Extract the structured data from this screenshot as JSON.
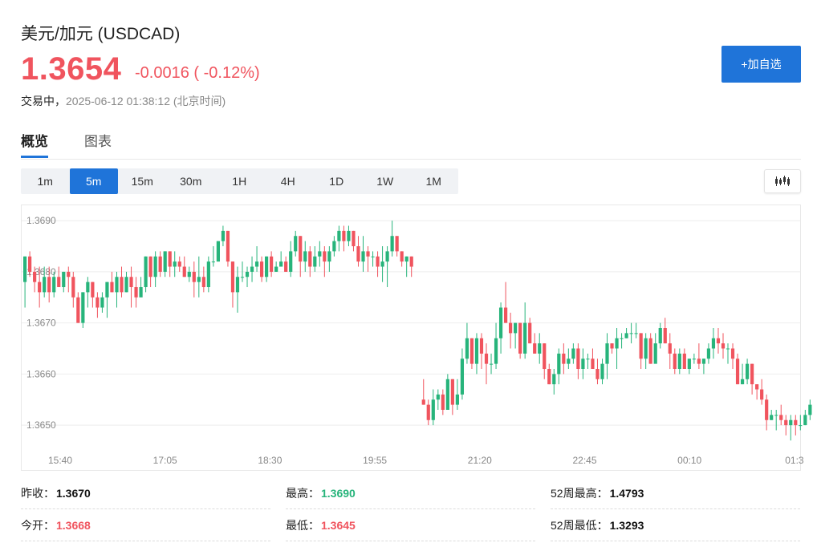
{
  "header": {
    "title": "美元/加元  (USDCAD)",
    "price": "1.3654",
    "change": "-0.0016 ( -0.12%)",
    "status_label": "交易中，",
    "timestamp": "2025-06-12 01:38:12  (北京时间)",
    "add_button": "+加自选"
  },
  "tabs": [
    {
      "label": "概览",
      "active": true
    },
    {
      "label": "图表",
      "active": false
    }
  ],
  "periods": [
    {
      "label": "1m",
      "active": false
    },
    {
      "label": "5m",
      "active": true
    },
    {
      "label": "15m",
      "active": false
    },
    {
      "label": "30m",
      "active": false
    },
    {
      "label": "1H",
      "active": false
    },
    {
      "label": "4H",
      "active": false
    },
    {
      "label": "1D",
      "active": false
    },
    {
      "label": "1W",
      "active": false
    },
    {
      "label": "1M",
      "active": false
    }
  ],
  "chart_type_icon": "candlestick-icon",
  "colors": {
    "up": "#27b47b",
    "down": "#f0545e",
    "accent": "#1f74d9"
  },
  "chart_data": {
    "type": "candlestick",
    "title": "",
    "y_ticks": [
      "1.3690",
      "1.3680",
      "1.3670",
      "1.3660",
      "1.3650"
    ],
    "x_ticks": [
      "15:40",
      "17:05",
      "18:30",
      "19:55",
      "21:20",
      "22:45",
      "00:10",
      "01:3"
    ],
    "ylim": [
      1.3645,
      1.3693
    ],
    "grid": true,
    "session_gap_after_index": 80,
    "candles": [
      [
        1.3678,
        1.3683,
        1.3683,
        1.3673
      ],
      [
        1.3683,
        1.368,
        1.3684,
        1.3679
      ],
      [
        1.368,
        1.3678,
        1.3681,
        1.3676
      ],
      [
        1.3678,
        1.3676,
        1.3681,
        1.3673
      ],
      [
        1.3676,
        1.3679,
        1.3681,
        1.3675
      ],
      [
        1.3679,
        1.3676,
        1.3681,
        1.3674
      ],
      [
        1.3676,
        1.3679,
        1.368,
        1.3675
      ],
      [
        1.3679,
        1.3677,
        1.3681,
        1.3677
      ],
      [
        1.3677,
        1.368,
        1.368,
        1.3676
      ],
      [
        1.368,
        1.3679,
        1.3681,
        1.3676
      ],
      [
        1.3679,
        1.3675,
        1.368,
        1.3673
      ],
      [
        1.3675,
        1.367,
        1.3676,
        1.367
      ],
      [
        1.367,
        1.3676,
        1.3676,
        1.3669
      ],
      [
        1.3676,
        1.3678,
        1.3679,
        1.3673
      ],
      [
        1.3678,
        1.3675,
        1.3678,
        1.3673
      ],
      [
        1.3675,
        1.3673,
        1.3676,
        1.3671
      ],
      [
        1.3673,
        1.3675,
        1.3676,
        1.3672
      ],
      [
        1.3675,
        1.3678,
        1.3678,
        1.3671
      ],
      [
        1.3678,
        1.3676,
        1.368,
        1.3676
      ],
      [
        1.3676,
        1.3679,
        1.368,
        1.3673
      ],
      [
        1.3679,
        1.3676,
        1.3681,
        1.3675
      ],
      [
        1.3676,
        1.3679,
        1.368,
        1.3676
      ],
      [
        1.3679,
        1.3677,
        1.3681,
        1.3673
      ],
      [
        1.3677,
        1.3675,
        1.3679,
        1.3673
      ],
      [
        1.3675,
        1.3677,
        1.3679,
        1.3676
      ],
      [
        1.3677,
        1.3683,
        1.3683,
        1.3676
      ],
      [
        1.3683,
        1.3679,
        1.3683,
        1.3677
      ],
      [
        1.3679,
        1.3683,
        1.3684,
        1.3677
      ],
      [
        1.3683,
        1.368,
        1.3684,
        1.3679
      ],
      [
        1.368,
        1.3684,
        1.3684,
        1.3679
      ],
      [
        1.3684,
        1.3681,
        1.3684,
        1.3679
      ],
      [
        1.3681,
        1.3682,
        1.3684,
        1.3679
      ],
      [
        1.3682,
        1.3681,
        1.3683,
        1.368
      ],
      [
        1.3681,
        1.3679,
        1.3683,
        1.3679
      ],
      [
        1.3679,
        1.368,
        1.3681,
        1.3678
      ],
      [
        1.368,
        1.3678,
        1.3682,
        1.3675
      ],
      [
        1.3678,
        1.3679,
        1.3683,
        1.3675
      ],
      [
        1.3679,
        1.3677,
        1.3681,
        1.3676
      ],
      [
        1.3677,
        1.3682,
        1.3683,
        1.3676
      ],
      [
        1.3682,
        1.3682,
        1.3685,
        1.3681
      ],
      [
        1.3682,
        1.3686,
        1.3686,
        1.3682
      ],
      [
        1.3686,
        1.3688,
        1.3689,
        1.3685
      ],
      [
        1.3688,
        1.3682,
        1.3688,
        1.3681
      ],
      [
        1.3682,
        1.3676,
        1.3682,
        1.3673
      ],
      [
        1.3676,
        1.3679,
        1.3681,
        1.3672
      ],
      [
        1.3679,
        1.3679,
        1.3682,
        1.3678
      ],
      [
        1.3679,
        1.368,
        1.3681,
        1.3677
      ],
      [
        1.368,
        1.3681,
        1.3683,
        1.3678
      ],
      [
        1.3681,
        1.3682,
        1.3685,
        1.368
      ],
      [
        1.3682,
        1.3679,
        1.3683,
        1.3678
      ],
      [
        1.3679,
        1.3683,
        1.3683,
        1.3678
      ],
      [
        1.3683,
        1.368,
        1.3684,
        1.3679
      ],
      [
        1.368,
        1.3681,
        1.3682,
        1.368
      ],
      [
        1.3681,
        1.3682,
        1.3684,
        1.3681
      ],
      [
        1.3682,
        1.368,
        1.3683,
        1.368
      ],
      [
        1.368,
        1.3684,
        1.3686,
        1.3679
      ],
      [
        1.3684,
        1.3687,
        1.3688,
        1.3683
      ],
      [
        1.3687,
        1.3682,
        1.3687,
        1.3679
      ],
      [
        1.3682,
        1.3684,
        1.3686,
        1.368
      ],
      [
        1.3684,
        1.3681,
        1.3685,
        1.3679
      ],
      [
        1.3681,
        1.3683,
        1.3685,
        1.368
      ],
      [
        1.3683,
        1.3684,
        1.3686,
        1.3681
      ],
      [
        1.3684,
        1.3682,
        1.3685,
        1.3679
      ],
      [
        1.3682,
        1.3684,
        1.3685,
        1.368
      ],
      [
        1.3684,
        1.3686,
        1.3687,
        1.3683
      ],
      [
        1.3686,
        1.3688,
        1.3689,
        1.3684
      ],
      [
        1.3688,
        1.3686,
        1.3689,
        1.3684
      ],
      [
        1.3686,
        1.3688,
        1.3689,
        1.3685
      ],
      [
        1.3688,
        1.3685,
        1.3688,
        1.3684
      ],
      [
        1.3685,
        1.3682,
        1.3687,
        1.3681
      ],
      [
        1.3682,
        1.3684,
        1.3687,
        1.368
      ],
      [
        1.3684,
        1.3683,
        1.3685,
        1.368
      ],
      [
        1.3683,
        1.3683,
        1.3684,
        1.3681
      ],
      [
        1.3683,
        1.3681,
        1.3684,
        1.3679
      ],
      [
        1.3681,
        1.3682,
        1.3685,
        1.3678
      ],
      [
        1.3682,
        1.3684,
        1.3685,
        1.3677
      ],
      [
        1.3684,
        1.3687,
        1.369,
        1.3683
      ],
      [
        1.3687,
        1.3684,
        1.3687,
        1.3683
      ],
      [
        1.3684,
        1.3682,
        1.3684,
        1.3681
      ],
      [
        1.3682,
        1.3683,
        1.3683,
        1.3679
      ],
      [
        1.3683,
        1.3681,
        1.3683,
        1.3679
      ],
      [
        1.3655,
        1.3654,
        1.3659,
        1.3654
      ],
      [
        1.3654,
        1.3651,
        1.3655,
        1.365
      ],
      [
        1.3651,
        1.3655,
        1.3657,
        1.365
      ],
      [
        1.3655,
        1.3656,
        1.3657,
        1.3653
      ],
      [
        1.3656,
        1.3653,
        1.3657,
        1.3652
      ],
      [
        1.3653,
        1.3659,
        1.366,
        1.3653
      ],
      [
        1.3659,
        1.3654,
        1.3659,
        1.3652
      ],
      [
        1.3654,
        1.3656,
        1.3659,
        1.3653
      ],
      [
        1.3656,
        1.3663,
        1.3665,
        1.3655
      ],
      [
        1.3663,
        1.3667,
        1.367,
        1.3662
      ],
      [
        1.3667,
        1.3662,
        1.3667,
        1.3661
      ],
      [
        1.3662,
        1.3667,
        1.3668,
        1.366
      ],
      [
        1.3667,
        1.3664,
        1.3668,
        1.3661
      ],
      [
        1.3664,
        1.3662,
        1.3666,
        1.3658
      ],
      [
        1.3662,
        1.3662,
        1.3664,
        1.366
      ],
      [
        1.3662,
        1.3667,
        1.367,
        1.3661
      ],
      [
        1.3667,
        1.3673,
        1.3674,
        1.3664
      ],
      [
        1.3673,
        1.367,
        1.3678,
        1.367
      ],
      [
        1.367,
        1.3668,
        1.3672,
        1.3665
      ],
      [
        1.3668,
        1.367,
        1.367,
        1.3665
      ],
      [
        1.367,
        1.3664,
        1.367,
        1.3663
      ],
      [
        1.3664,
        1.367,
        1.3674,
        1.3663
      ],
      [
        1.367,
        1.3666,
        1.3671,
        1.3666
      ],
      [
        1.3666,
        1.3664,
        1.3668,
        1.3664
      ],
      [
        1.3664,
        1.3666,
        1.3668,
        1.3662
      ],
      [
        1.3666,
        1.3661,
        1.3666,
        1.3659
      ],
      [
        1.3661,
        1.3658,
        1.3662,
        1.3658
      ],
      [
        1.3658,
        1.366,
        1.3661,
        1.3656
      ],
      [
        1.366,
        1.3664,
        1.3665,
        1.3658
      ],
      [
        1.3664,
        1.3662,
        1.3666,
        1.366
      ],
      [
        1.3662,
        1.3663,
        1.3665,
        1.3661
      ],
      [
        1.3663,
        1.3665,
        1.3666,
        1.3662
      ],
      [
        1.3665,
        1.3661,
        1.3666,
        1.3659
      ],
      [
        1.3661,
        1.3663,
        1.3665,
        1.3659
      ],
      [
        1.3663,
        1.3663,
        1.3664,
        1.3661
      ],
      [
        1.3663,
        1.3661,
        1.3665,
        1.3661
      ],
      [
        1.3661,
        1.3659,
        1.3663,
        1.3658
      ],
      [
        1.3659,
        1.3662,
        1.3663,
        1.3658
      ],
      [
        1.3662,
        1.3666,
        1.3668,
        1.3659
      ],
      [
        1.3666,
        1.3665,
        1.3666,
        1.3664
      ],
      [
        1.3665,
        1.3667,
        1.3669,
        1.3661
      ],
      [
        1.3667,
        1.3667,
        1.3668,
        1.3665
      ],
      [
        1.3667,
        1.3668,
        1.3669,
        1.3667
      ],
      [
        1.3668,
        1.3668,
        1.367,
        1.3666
      ],
      [
        1.3668,
        1.3668,
        1.367,
        1.3667
      ],
      [
        1.3668,
        1.3663,
        1.3668,
        1.3661
      ],
      [
        1.3663,
        1.3667,
        1.3668,
        1.3661
      ],
      [
        1.3667,
        1.3662,
        1.3668,
        1.3662
      ],
      [
        1.3662,
        1.3666,
        1.3668,
        1.3663
      ],
      [
        1.3666,
        1.3669,
        1.367,
        1.3665
      ],
      [
        1.3669,
        1.3666,
        1.3671,
        1.3666
      ],
      [
        1.3666,
        1.3664,
        1.3668,
        1.3661
      ],
      [
        1.3664,
        1.3661,
        1.3665,
        1.366
      ],
      [
        1.3661,
        1.3664,
        1.3665,
        1.366
      ],
      [
        1.3664,
        1.3661,
        1.3665,
        1.3661
      ],
      [
        1.3661,
        1.3663,
        1.3663,
        1.366
      ],
      [
        1.3663,
        1.3663,
        1.3664,
        1.3662
      ],
      [
        1.3663,
        1.3662,
        1.3666,
        1.3661
      ],
      [
        1.3662,
        1.3663,
        1.3663,
        1.366
      ],
      [
        1.3663,
        1.3665,
        1.3666,
        1.3662
      ],
      [
        1.3665,
        1.3667,
        1.3669,
        1.3663
      ],
      [
        1.3667,
        1.3666,
        1.3669,
        1.3664
      ],
      [
        1.3666,
        1.3665,
        1.3668,
        1.3663
      ],
      [
        1.3665,
        1.3665,
        1.3666,
        1.3662
      ],
      [
        1.3665,
        1.3663,
        1.3666,
        1.3661
      ],
      [
        1.3663,
        1.3658,
        1.3664,
        1.3658
      ],
      [
        1.3658,
        1.3659,
        1.3662,
        1.3658
      ],
      [
        1.3659,
        1.3662,
        1.3663,
        1.3658
      ],
      [
        1.3662,
        1.3658,
        1.3662,
        1.3656
      ],
      [
        1.3658,
        1.3657,
        1.3658,
        1.3655
      ],
      [
        1.3657,
        1.3655,
        1.3659,
        1.3654
      ],
      [
        1.3655,
        1.3651,
        1.3656,
        1.3649
      ],
      [
        1.3651,
        1.3652,
        1.3653,
        1.3651
      ],
      [
        1.3652,
        1.3652,
        1.3653,
        1.3649
      ],
      [
        1.3652,
        1.3651,
        1.3654,
        1.365
      ],
      [
        1.3651,
        1.365,
        1.3652,
        1.3648
      ],
      [
        1.365,
        1.3651,
        1.3652,
        1.3647
      ],
      [
        1.3651,
        1.365,
        1.3652,
        1.3648
      ],
      [
        1.365,
        1.365,
        1.3652,
        1.3649
      ],
      [
        1.365,
        1.3652,
        1.3653,
        1.365
      ],
      [
        1.3652,
        1.3654,
        1.3655,
        1.3651
      ]
    ],
    "xlabel": "",
    "ylabel": ""
  },
  "stats": [
    {
      "label": "昨收：",
      "value": "1.3670",
      "color": "dark"
    },
    {
      "label": "最高：",
      "value": "1.3690",
      "color": "green"
    },
    {
      "label": "52周最高：",
      "value": "1.4793",
      "color": "dark"
    },
    {
      "label": "今开：",
      "value": "1.3668",
      "color": "red"
    },
    {
      "label": "最低：",
      "value": "1.3645",
      "color": "red"
    },
    {
      "label": "52周最低：",
      "value": "1.3293",
      "color": "dark"
    }
  ]
}
